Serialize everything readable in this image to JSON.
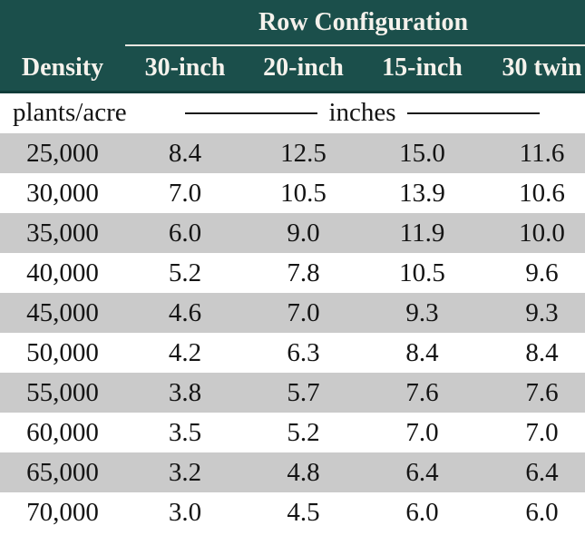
{
  "chart_data": {
    "type": "table",
    "title": "Row Configuration",
    "columns": [
      "Density",
      "30-inch",
      "20-inch",
      "15-inch",
      "30 twin"
    ],
    "units_row": {
      "density_units": "plants/acre",
      "spacing_units": "inches"
    },
    "rows": [
      [
        "25,000",
        "8.4",
        "12.5",
        "15.0",
        "11.6"
      ],
      [
        "30,000",
        "7.0",
        "10.5",
        "13.9",
        "10.6"
      ],
      [
        "35,000",
        "6.0",
        "9.0",
        "11.9",
        "10.0"
      ],
      [
        "40,000",
        "5.2",
        "7.8",
        "10.5",
        "9.6"
      ],
      [
        "45,000",
        "4.6",
        "7.0",
        "9.3",
        "9.3"
      ],
      [
        "50,000",
        "4.2",
        "6.3",
        "8.4",
        "8.4"
      ],
      [
        "55,000",
        "3.8",
        "5.7",
        "7.6",
        "7.6"
      ],
      [
        "60,000",
        "3.5",
        "5.2",
        "7.0",
        "7.0"
      ],
      [
        "65,000",
        "3.2",
        "4.8",
        "6.4",
        "6.4"
      ],
      [
        "70,000",
        "3.0",
        "4.5",
        "6.0",
        "6.0"
      ]
    ]
  },
  "colors": {
    "header_bg": "#1b4f4b",
    "header_border_bottom": "#113c39",
    "header_text": "#f5f2ec",
    "spanner_underline": "#e8e6e0",
    "shaded_row_bg": "#cacaca",
    "plain_row_bg": "#ffffff",
    "body_text": "#141414"
  }
}
